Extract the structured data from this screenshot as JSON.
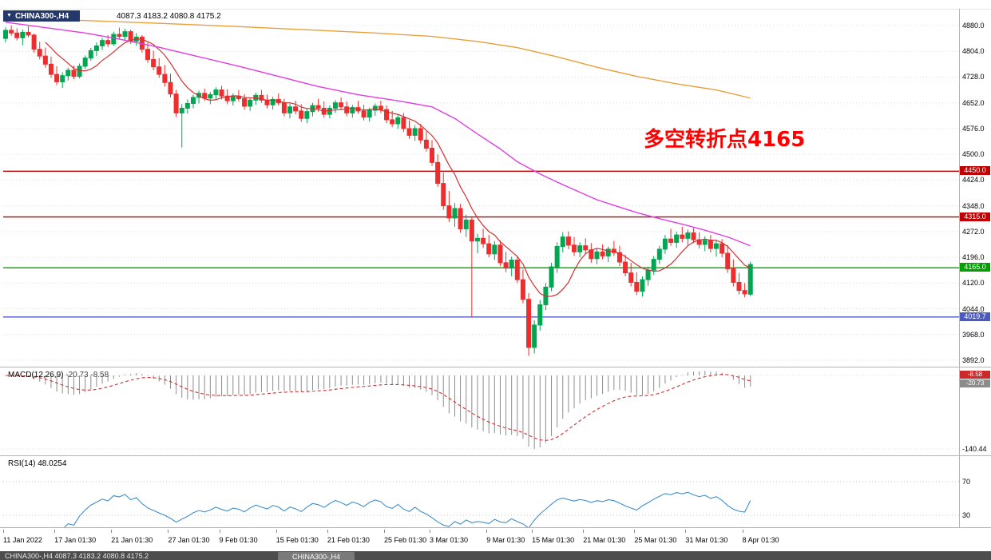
{
  "window": {
    "collapse_icon": "▼",
    "symbol_period": "CHINA300-,H4",
    "ohlc_text": "4087.3 4183.2 4080.8 4175.2",
    "open": "4087.3",
    "high": "4183.2",
    "low": "4080.8",
    "close": "4175.2"
  },
  "annotation": {
    "text": "多空转折点4165",
    "color": "#ff0000"
  },
  "colors": {
    "up": "#00a651",
    "down": "#ee2e2e",
    "grid": "#dcdcdc",
    "red_line": "#c00000",
    "green_line": "#00a000",
    "blue_line": "#4a5abf",
    "ma_fast": "#d23030",
    "ma_mid": "#e03ee0",
    "ma_slow": "#e8a03c",
    "macd_hist": "#8c8c8c",
    "macd_signal": "#d03030",
    "rsi_line": "#3f8fc9",
    "titlebar_bg": "#25386b",
    "bottom_bar_bg": "#4d4d4d"
  },
  "macd": {
    "name": "MACD(12,26,9)",
    "main_value": "-20.73",
    "signal_value": "-8.58",
    "axis_min_label": "-140.44",
    "tags": [
      {
        "text": "-8.58",
        "bg": "#cc2a2a"
      },
      {
        "text": "-20.73",
        "bg": "#8c8c8c"
      }
    ]
  },
  "rsi": {
    "name": "RSI(14)",
    "value": "48.0254",
    "level_labels": [
      "70",
      "30"
    ]
  },
  "bottom_bar": {
    "left_text": "CHINA300-,H4 4087.3 4183.2 4080.8 4175.2",
    "tab_text": "CHINA300-,H4"
  },
  "chart_data": {
    "type": "candlestick",
    "symbol": "CHINA300-",
    "timeframe": "H4",
    "title": "CHINA300-,H4 4087.3 4183.2 4080.8 4175.2",
    "y_ticks": [
      4880,
      4804,
      4728,
      4652,
      4576,
      4500,
      4424,
      4348,
      4272,
      4196,
      4120,
      4044,
      3968,
      3892
    ],
    "x_labels": [
      {
        "text": "11 Jan 2022",
        "bar": 0
      },
      {
        "text": "17 Jan 01:30",
        "bar": 9
      },
      {
        "text": "21 Jan 01:30",
        "bar": 19
      },
      {
        "text": "27 Jan 01:30",
        "bar": 29
      },
      {
        "text": "9 Feb 01:30",
        "bar": 38
      },
      {
        "text": "15 Feb 01:30",
        "bar": 48
      },
      {
        "text": "21 Feb 01:30",
        "bar": 57
      },
      {
        "text": "25 Feb 01:30",
        "bar": 67
      },
      {
        "text": "3 Mar 01:30",
        "bar": 75
      },
      {
        "text": "9 Mar 01:30",
        "bar": 85
      },
      {
        "text": "15 Mar 01:30",
        "bar": 93
      },
      {
        "text": "21 Mar 01:30",
        "bar": 102
      },
      {
        "text": "25 Mar 01:30",
        "bar": 111
      },
      {
        "text": "31 Mar 01:30",
        "bar": 120
      },
      {
        "text": "8 Apr 01:30",
        "bar": 130
      }
    ],
    "hlines": [
      {
        "price": 4450.0,
        "label": "4450.0",
        "color": "#c00000"
      },
      {
        "price": 4315.0,
        "label": "4315.0",
        "color": "#c00000"
      },
      {
        "price": 4165.0,
        "label": "4165.0",
        "color": "#00a000"
      },
      {
        "price": 4019.7,
        "label": "4019.7",
        "color": "#4a5abf"
      }
    ],
    "candles": [
      [
        4842,
        4875,
        4830,
        4866
      ],
      [
        4866,
        4880,
        4850,
        4858
      ],
      [
        4858,
        4872,
        4836,
        4844
      ],
      [
        4844,
        4868,
        4822,
        4860
      ],
      [
        4860,
        4878,
        4845,
        4852
      ],
      [
        4852,
        4856,
        4800,
        4810
      ],
      [
        4810,
        4832,
        4780,
        4790
      ],
      [
        4790,
        4815,
        4756,
        4766
      ],
      [
        4766,
        4788,
        4726,
        4736
      ],
      [
        4736,
        4760,
        4704,
        4714
      ],
      [
        4714,
        4742,
        4696,
        4732
      ],
      [
        4732,
        4756,
        4718,
        4748
      ],
      [
        4748,
        4762,
        4722,
        4730
      ],
      [
        4730,
        4768,
        4724,
        4760
      ],
      [
        4760,
        4792,
        4752,
        4784
      ],
      [
        4784,
        4814,
        4776,
        4806
      ],
      [
        4806,
        4830,
        4790,
        4820
      ],
      [
        4820,
        4844,
        4808,
        4836
      ],
      [
        4836,
        4852,
        4816,
        4826
      ],
      [
        4826,
        4862,
        4820,
        4854
      ],
      [
        4854,
        4874,
        4840,
        4848
      ],
      [
        4848,
        4870,
        4836,
        4862
      ],
      [
        4862,
        4868,
        4826,
        4834
      ],
      [
        4834,
        4858,
        4820,
        4846
      ],
      [
        4846,
        4852,
        4800,
        4810
      ],
      [
        4810,
        4830,
        4770,
        4780
      ],
      [
        4780,
        4806,
        4748,
        4758
      ],
      [
        4758,
        4784,
        4726,
        4736
      ],
      [
        4736,
        4764,
        4700,
        4712
      ],
      [
        4712,
        4738,
        4668,
        4678
      ],
      [
        4678,
        4690,
        4610,
        4622
      ],
      [
        4622,
        4648,
        4520,
        4636
      ],
      [
        4636,
        4662,
        4620,
        4650
      ],
      [
        4650,
        4676,
        4636,
        4668
      ],
      [
        4668,
        4688,
        4650,
        4680
      ],
      [
        4680,
        4694,
        4658,
        4666
      ],
      [
        4666,
        4684,
        4648,
        4676
      ],
      [
        4676,
        4698,
        4660,
        4690
      ],
      [
        4690,
        4702,
        4662,
        4672
      ],
      [
        4672,
        4692,
        4648,
        4658
      ],
      [
        4658,
        4680,
        4644,
        4672
      ],
      [
        4672,
        4690,
        4656,
        4664
      ],
      [
        4664,
        4678,
        4632,
        4642
      ],
      [
        4642,
        4668,
        4628,
        4660
      ],
      [
        4660,
        4682,
        4646,
        4674
      ],
      [
        4674,
        4690,
        4652,
        4660
      ],
      [
        4660,
        4676,
        4636,
        4646
      ],
      [
        4646,
        4670,
        4632,
        4662
      ],
      [
        4662,
        4680,
        4644,
        4652
      ],
      [
        4652,
        4664,
        4612,
        4622
      ],
      [
        4622,
        4650,
        4606,
        4640
      ],
      [
        4640,
        4658,
        4618,
        4628
      ],
      [
        4628,
        4648,
        4596,
        4606
      ],
      [
        4606,
        4636,
        4592,
        4626
      ],
      [
        4626,
        4652,
        4612,
        4644
      ],
      [
        4644,
        4664,
        4626,
        4636
      ],
      [
        4636,
        4656,
        4608,
        4618
      ],
      [
        4618,
        4644,
        4606,
        4636
      ],
      [
        4636,
        4660,
        4622,
        4652
      ],
      [
        4652,
        4668,
        4630,
        4640
      ],
      [
        4640,
        4656,
        4612,
        4622
      ],
      [
        4622,
        4646,
        4608,
        4638
      ],
      [
        4638,
        4658,
        4620,
        4628
      ],
      [
        4628,
        4646,
        4600,
        4610
      ],
      [
        4610,
        4638,
        4596,
        4630
      ],
      [
        4630,
        4650,
        4614,
        4642
      ],
      [
        4642,
        4658,
        4622,
        4632
      ],
      [
        4632,
        4644,
        4592,
        4602
      ],
      [
        4602,
        4628,
        4580,
        4590
      ],
      [
        4590,
        4618,
        4576,
        4608
      ],
      [
        4608,
        4622,
        4566,
        4576
      ],
      [
        4576,
        4600,
        4546,
        4556
      ],
      [
        4556,
        4586,
        4540,
        4576
      ],
      [
        4576,
        4590,
        4532,
        4542
      ],
      [
        4542,
        4568,
        4508,
        4518
      ],
      [
        4518,
        4542,
        4466,
        4476
      ],
      [
        4476,
        4500,
        4404,
        4414
      ],
      [
        4414,
        4446,
        4336,
        4348
      ],
      [
        4348,
        4392,
        4300,
        4312
      ],
      [
        4312,
        4356,
        4286,
        4340
      ],
      [
        4340,
        4354,
        4268,
        4280
      ],
      [
        4280,
        4322,
        4256,
        4306
      ],
      [
        4306,
        4314,
        4018,
        4244
      ],
      [
        4244,
        4266,
        4208,
        4252
      ],
      [
        4252,
        4280,
        4224,
        4236
      ],
      [
        4236,
        4262,
        4196,
        4206
      ],
      [
        4206,
        4244,
        4188,
        4232
      ],
      [
        4232,
        4246,
        4170,
        4180
      ],
      [
        4180,
        4212,
        4152,
        4164
      ],
      [
        4164,
        4198,
        4140,
        4188
      ],
      [
        4188,
        4200,
        4120,
        4130
      ],
      [
        4130,
        4160,
        4060,
        4072
      ],
      [
        4072,
        4090,
        3905,
        3930
      ],
      [
        3930,
        4010,
        3912,
        3996
      ],
      [
        3996,
        4070,
        3980,
        4056
      ],
      [
        4056,
        4120,
        4040,
        4108
      ],
      [
        4108,
        4180,
        4096,
        4168
      ],
      [
        4168,
        4240,
        4150,
        4228
      ],
      [
        4228,
        4270,
        4210,
        4256
      ],
      [
        4256,
        4272,
        4220,
        4232
      ],
      [
        4232,
        4256,
        4200,
        4212
      ],
      [
        4212,
        4240,
        4196,
        4230
      ],
      [
        4230,
        4252,
        4208,
        4218
      ],
      [
        4218,
        4238,
        4180,
        4192
      ],
      [
        4192,
        4222,
        4176,
        4212
      ],
      [
        4212,
        4234,
        4190,
        4200
      ],
      [
        4200,
        4228,
        4182,
        4220
      ],
      [
        4220,
        4244,
        4200,
        4210
      ],
      [
        4210,
        4230,
        4170,
        4182
      ],
      [
        4182,
        4204,
        4140,
        4150
      ],
      [
        4150,
        4180,
        4110,
        4122
      ],
      [
        4122,
        4152,
        4084,
        4096
      ],
      [
        4096,
        4140,
        4080,
        4130
      ],
      [
        4130,
        4168,
        4112,
        4158
      ],
      [
        4158,
        4200,
        4144,
        4190
      ],
      [
        4190,
        4230,
        4176,
        4220
      ],
      [
        4220,
        4262,
        4206,
        4250
      ],
      [
        4250,
        4280,
        4230,
        4240
      ],
      [
        4240,
        4272,
        4224,
        4262
      ],
      [
        4262,
        4286,
        4240,
        4252
      ],
      [
        4252,
        4278,
        4230,
        4268
      ],
      [
        4268,
        4282,
        4238,
        4248
      ],
      [
        4248,
        4270,
        4222,
        4234
      ],
      [
        4234,
        4258,
        4214,
        4246
      ],
      [
        4246,
        4262,
        4210,
        4222
      ],
      [
        4222,
        4246,
        4198,
        4236
      ],
      [
        4236,
        4250,
        4196,
        4208
      ],
      [
        4208,
        4232,
        4150,
        4162
      ],
      [
        4162,
        4190,
        4110,
        4122
      ],
      [
        4122,
        4150,
        4086,
        4098
      ],
      [
        4098,
        4120,
        4078,
        4088
      ],
      [
        4087,
        4183,
        4081,
        4175
      ]
    ],
    "overlays": {
      "ma_fast": {
        "type": "sma",
        "period": 8,
        "color": "#d23030"
      },
      "ma_mid": {
        "color": "#e03ee0",
        "points": [
          [
            0,
            4890
          ],
          [
            7,
            4874
          ],
          [
            14,
            4858
          ],
          [
            20,
            4840
          ],
          [
            27,
            4816
          ],
          [
            34,
            4788
          ],
          [
            41,
            4760
          ],
          [
            48,
            4730
          ],
          [
            55,
            4700
          ],
          [
            62,
            4676
          ],
          [
            69,
            4658
          ],
          [
            75,
            4640
          ],
          [
            79,
            4606
          ],
          [
            83,
            4560
          ],
          [
            87,
            4516
          ],
          [
            90,
            4478
          ],
          [
            94,
            4442
          ],
          [
            97,
            4418
          ],
          [
            101,
            4388
          ],
          [
            104,
            4366
          ],
          [
            108,
            4344
          ],
          [
            111,
            4328
          ],
          [
            115,
            4310
          ],
          [
            119,
            4294
          ],
          [
            123,
            4276
          ],
          [
            127,
            4256
          ],
          [
            131,
            4230
          ]
        ]
      },
      "ma_slow": {
        "color": "#e8a03c",
        "points": [
          [
            0,
            4902
          ],
          [
            14,
            4895
          ],
          [
            28,
            4886
          ],
          [
            41,
            4877
          ],
          [
            55,
            4866
          ],
          [
            65,
            4858
          ],
          [
            75,
            4848
          ],
          [
            83,
            4833
          ],
          [
            90,
            4815
          ],
          [
            97,
            4788
          ],
          [
            104,
            4757
          ],
          [
            111,
            4730
          ],
          [
            118,
            4708
          ],
          [
            125,
            4690
          ],
          [
            131,
            4666
          ]
        ]
      }
    },
    "indicators": {
      "macd": {
        "params": [
          12,
          26,
          9
        ],
        "current_main": -20.73,
        "current_signal": -8.58,
        "scale_min": -140.44
      },
      "rsi": {
        "period": 14,
        "current": 48.0254,
        "levels": [
          70,
          30
        ]
      }
    }
  }
}
